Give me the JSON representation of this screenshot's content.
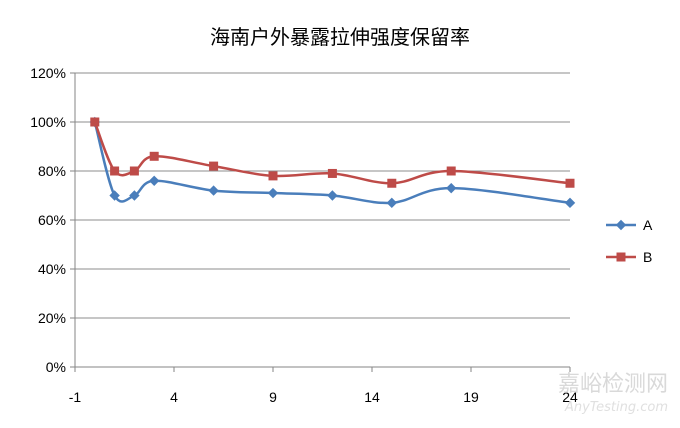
{
  "chart_data": {
    "type": "line",
    "title": "海南户外暴露拉伸强度保留率",
    "xlim": [
      -1,
      24
    ],
    "xticks": [
      -1,
      4,
      9,
      14,
      19,
      24
    ],
    "xtick_labels": [
      "-1",
      "4",
      "9",
      "14",
      "19",
      "24"
    ],
    "ylim": [
      0,
      1.2
    ],
    "yticks": [
      0,
      0.2,
      0.4,
      0.6,
      0.8,
      1.0,
      1.2
    ],
    "ytick_labels": [
      "0%",
      "20%",
      "40%",
      "60%",
      "80%",
      "100%",
      "120%"
    ],
    "grid": "horizontal",
    "legend_position": "right",
    "series": [
      {
        "name": "A",
        "color": "#4a7ebb",
        "marker": "diamond",
        "x": [
          0,
          1,
          2,
          3,
          6,
          9,
          12,
          15,
          18,
          24
        ],
        "y": [
          1.0,
          0.7,
          0.7,
          0.76,
          0.72,
          0.71,
          0.7,
          0.67,
          0.73,
          0.67
        ]
      },
      {
        "name": "B",
        "color": "#be4b48",
        "marker": "square",
        "x": [
          0,
          1,
          2,
          3,
          6,
          9,
          12,
          15,
          18,
          24
        ],
        "y": [
          1.0,
          0.8,
          0.8,
          0.86,
          0.82,
          0.78,
          0.79,
          0.75,
          0.8,
          0.75
        ]
      }
    ]
  },
  "watermark": {
    "main": "嘉峪检测网",
    "sub": "AnyTesting.com"
  }
}
